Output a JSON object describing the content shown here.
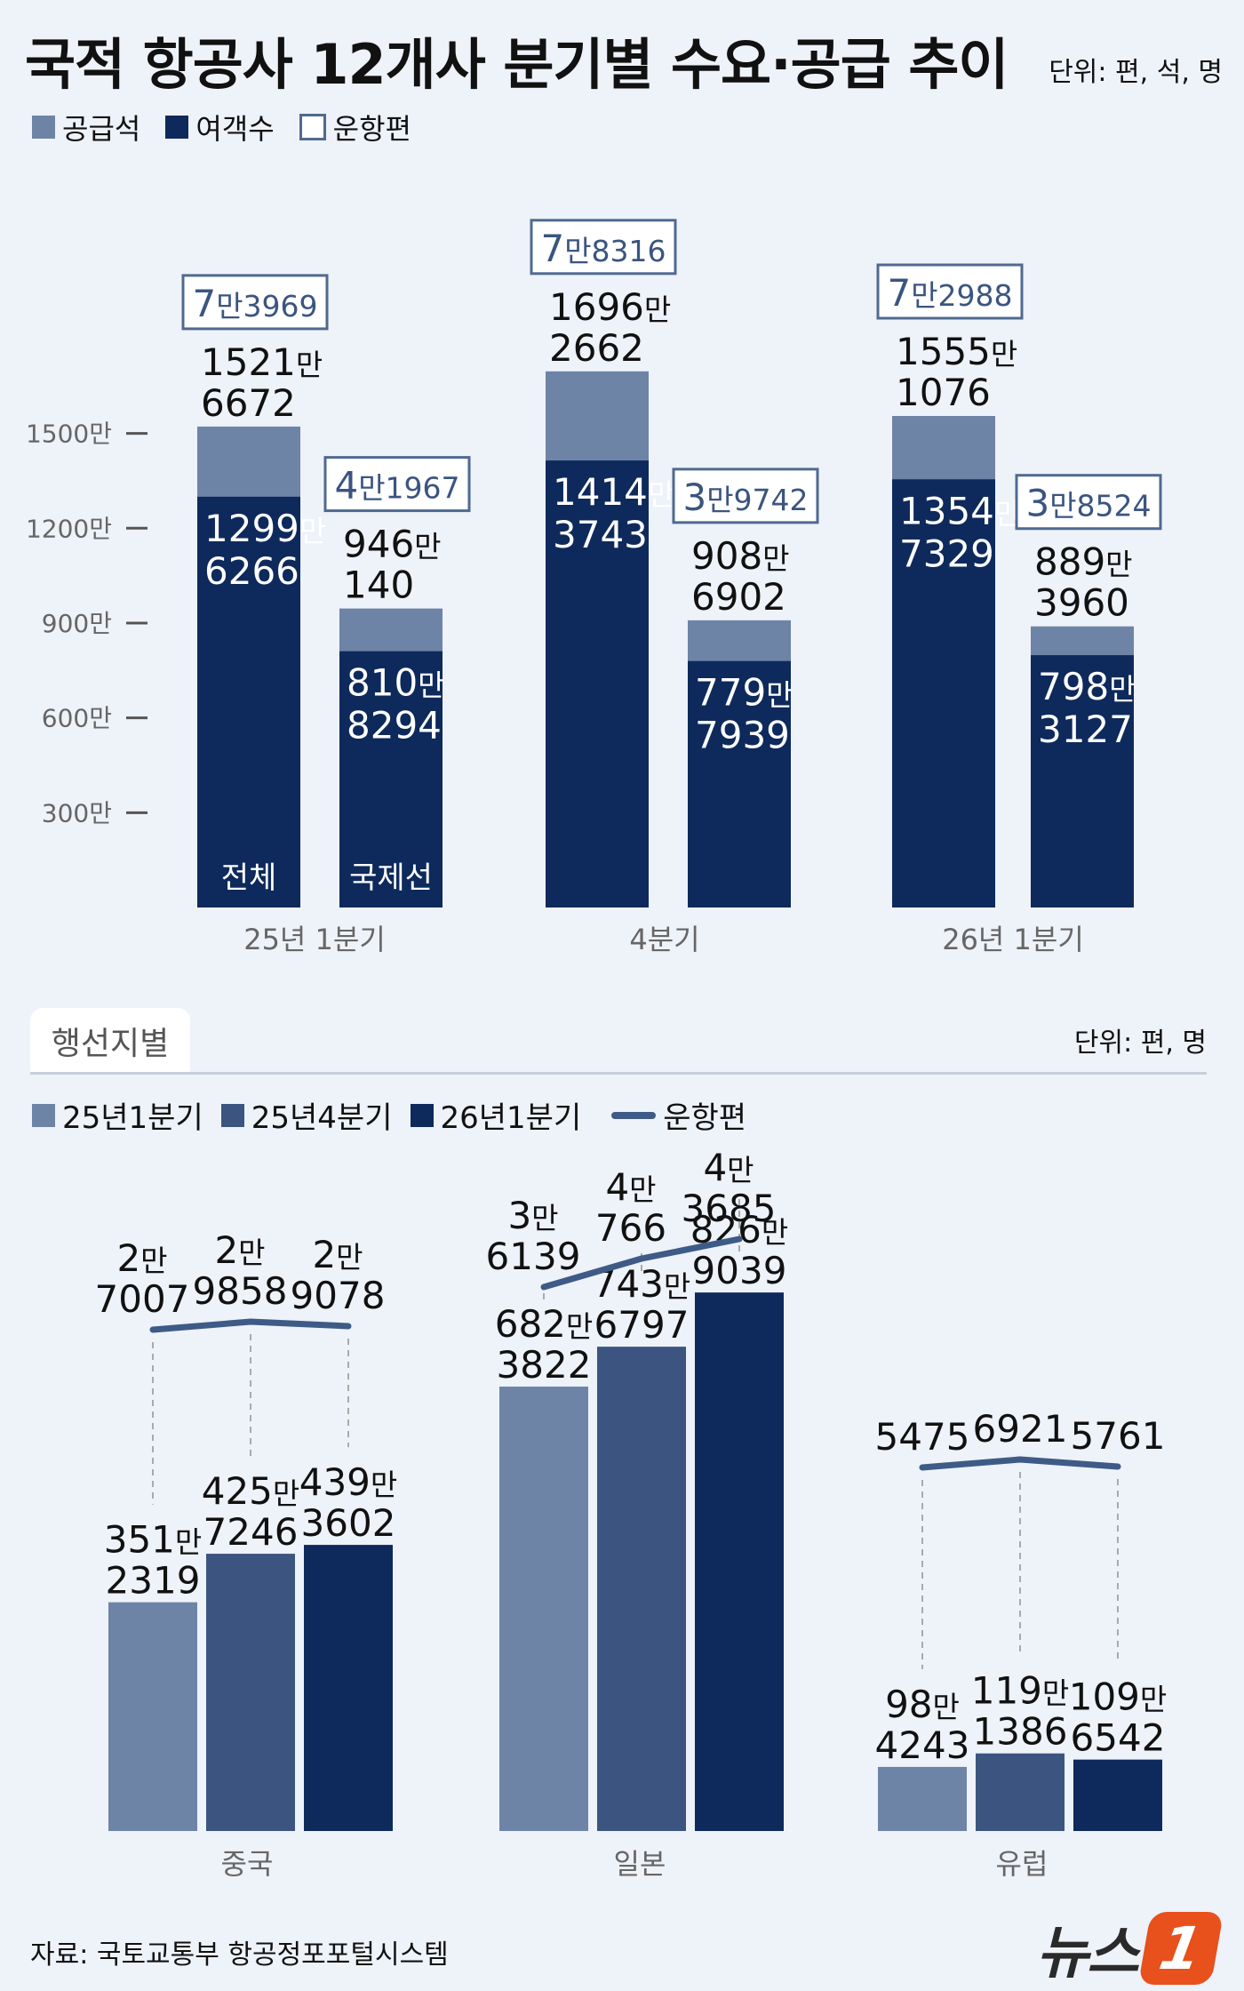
{
  "title": "국적 항공사 12개사 분기별 수요·공급 추이",
  "unit_top": "단위: 편, 석, 명",
  "legend_top": [
    {
      "label": "공급석",
      "color": "#6e84a6"
    },
    {
      "label": "여객수",
      "color": "#0e2a5c"
    },
    {
      "label": "운항편",
      "color": "#ffffff"
    }
  ],
  "section2_tab": "행선지별",
  "unit_bottom": "단위: 편, 명",
  "legend_bottom": [
    {
      "label": "25년1분기",
      "color": "#6e84a6"
    },
    {
      "label": "25년4분기",
      "color": "#3b5580"
    },
    {
      "label": "26년1분기",
      "color": "#0e2a5c"
    },
    {
      "label": "운항편",
      "color": "#3e5b87"
    }
  ],
  "source": "자료: 국토교통부 항공정포포털시스템",
  "logo": {
    "text": "뉴스",
    "badge": "1"
  },
  "chart_data": [
    {
      "type": "bar",
      "title": "국적 항공사 12개사 분기별 수요·공급 추이",
      "categories": [
        "25년 1분기",
        "4분기",
        "26년 1분기"
      ],
      "bar_labels": [
        "전체",
        "국제선"
      ],
      "y_ticks": [
        {
          "value": 300,
          "label": "300만"
        },
        {
          "value": 600,
          "label": "600만"
        },
        {
          "value": 900,
          "label": "900만"
        },
        {
          "value": 1200,
          "label": "1200만"
        },
        {
          "value": 1500,
          "label": "1500만"
        }
      ],
      "ylim": [
        0,
        1800
      ],
      "groups": [
        {
          "category": "25년 1분기",
          "bars": [
            {
              "name": "전체",
              "seats": 1521.6672,
              "seats_l1": "1521만",
              "seats_l2": "6672",
              "pax": 1299.6266,
              "pax_l1": "1299만",
              "pax_l2": "6266",
              "flights": "7만3969"
            },
            {
              "name": "국제선",
              "seats": 946.014,
              "seats_l1": "946만",
              "seats_l2": "140",
              "pax": 810.8294,
              "pax_l1": "810만",
              "pax_l2": "8294",
              "flights": "4만1967"
            }
          ]
        },
        {
          "category": "4분기",
          "bars": [
            {
              "name": "전체",
              "seats": 1696.2662,
              "seats_l1": "1696만",
              "seats_l2": "2662",
              "pax": 1414.3743,
              "pax_l1": "1414만",
              "pax_l2": "3743",
              "flights": "7만8316"
            },
            {
              "name": "국제선",
              "seats": 908.6902,
              "seats_l1": "908만",
              "seats_l2": "6902",
              "pax": 779.7939,
              "pax_l1": "779만",
              "pax_l2": "7939",
              "flights": "3만9742"
            }
          ]
        },
        {
          "category": "26년 1분기",
          "bars": [
            {
              "name": "전체",
              "seats": 1555.1076,
              "seats_l1": "1555만",
              "seats_l2": "1076",
              "pax": 1354.7329,
              "pax_l1": "1354만",
              "pax_l2": "7329",
              "flights": "7만2988"
            },
            {
              "name": "국제선",
              "seats": 889.396,
              "seats_l1": "889만",
              "seats_l2": "3960",
              "pax": 798.3127,
              "pax_l1": "798만",
              "pax_l2": "3127",
              "flights": "3만8524"
            }
          ]
        }
      ]
    },
    {
      "type": "bar",
      "title": "행선지별",
      "categories": [
        "중국",
        "일본",
        "유럽"
      ],
      "series": [
        {
          "name": "25년1분기",
          "color": "#6e84a6"
        },
        {
          "name": "25년4분기",
          "color": "#3b5580"
        },
        {
          "name": "26년1분기",
          "color": "#0e2a5c"
        }
      ],
      "ylim": [
        0,
        1000
      ],
      "groups": [
        {
          "category": "중국",
          "pax": [
            351.2319,
            425.7246,
            439.3602
          ],
          "pax_l1": [
            "351만",
            "425만",
            "439만"
          ],
          "pax_l2": [
            "2319",
            "7246",
            "3602"
          ],
          "flights": [
            27007,
            29858,
            29078
          ],
          "flights_l1": [
            "2만",
            "2만",
            "2만"
          ],
          "flights_l2": [
            "7007",
            "9858",
            "9078"
          ]
        },
        {
          "category": "일본",
          "pax": [
            682.3822,
            743.6797,
            826.9039
          ],
          "pax_l1": [
            "682만",
            "743만",
            "826만"
          ],
          "pax_l2": [
            "3822",
            "6797",
            "9039"
          ],
          "flights": [
            36139,
            40766,
            43685
          ],
          "flights_l1": [
            "3만",
            "4만",
            "4만"
          ],
          "flights_l2": [
            "6139",
            "766",
            "3685"
          ]
        },
        {
          "category": "유럽",
          "pax": [
            98.4243,
            119.1386,
            109.6542
          ],
          "pax_l1": [
            "98만",
            "119만",
            "109만"
          ],
          "pax_l2": [
            "4243",
            "1386",
            "6542"
          ],
          "flights": [
            5475,
            6921,
            5761
          ],
          "flights_l1": [
            "",
            "",
            ""
          ],
          "flights_l2": [
            "5475",
            "6921",
            "5761"
          ]
        }
      ]
    }
  ]
}
